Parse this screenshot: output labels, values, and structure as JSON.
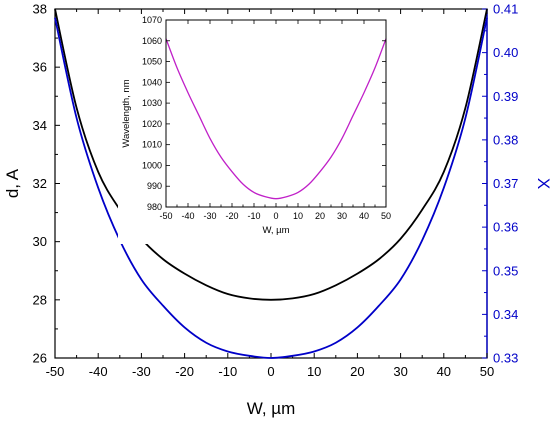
{
  "chart_data": [
    {
      "type": "line",
      "title": "",
      "xlabel": "W, µm",
      "ylabel": "d, A",
      "y2label": "X",
      "xlim": [
        -50,
        50
      ],
      "ylim": [
        26,
        38
      ],
      "y2lim": [
        0.33,
        0.41
      ],
      "x_ticks": [
        "-50",
        "-40",
        "-30",
        "-20",
        "-10",
        "0",
        "10",
        "20",
        "30",
        "40",
        "50"
      ],
      "y_ticks": [
        "26",
        "28",
        "30",
        "32",
        "34",
        "36",
        "38"
      ],
      "y2_ticks": [
        "0.33",
        "0.34",
        "0.35",
        "0.36",
        "0.37",
        "0.38",
        "0.39",
        "0.40",
        "0.41"
      ],
      "grid": false,
      "series": [
        {
          "axis": "left",
          "color": "#000000",
          "x": [
            -50,
            -45,
            -40,
            -35,
            -30,
            -25,
            -20,
            -15,
            -10,
            -5,
            0,
            5,
            10,
            15,
            20,
            25,
            30,
            35,
            40,
            45,
            50
          ],
          "y": [
            38.0,
            34.6,
            32.4,
            31.1,
            30.1,
            29.4,
            28.9,
            28.5,
            28.2,
            28.05,
            28.0,
            28.05,
            28.2,
            28.5,
            28.9,
            29.4,
            30.1,
            31.1,
            32.4,
            34.6,
            38.0
          ]
        },
        {
          "axis": "right",
          "color": "#0000c8",
          "x": [
            -50,
            -45,
            -40,
            -35,
            -30,
            -25,
            -20,
            -15,
            -10,
            -5,
            0,
            5,
            10,
            15,
            20,
            25,
            30,
            35,
            40,
            45,
            50
          ],
          "y": [
            0.408,
            0.385,
            0.369,
            0.357,
            0.348,
            0.342,
            0.337,
            0.3335,
            0.3315,
            0.3305,
            0.33,
            0.3305,
            0.3315,
            0.3335,
            0.337,
            0.342,
            0.348,
            0.357,
            0.369,
            0.385,
            0.408
          ]
        }
      ]
    },
    {
      "type": "line",
      "title": "",
      "xlabel": "W, µm",
      "ylabel": "Wavelength, nm",
      "xlim": [
        -50,
        50
      ],
      "ylim": [
        980,
        1070
      ],
      "x_ticks": [
        "-50",
        "-40",
        "-30",
        "-20",
        "-10",
        "0",
        "10",
        "20",
        "30",
        "40",
        "50"
      ],
      "y_ticks": [
        "980",
        "990",
        "1000",
        "1010",
        "1020",
        "1030",
        "1040",
        "1050",
        "1060",
        "1070"
      ],
      "grid": false,
      "series": [
        {
          "axis": "left",
          "color": "#c020c8",
          "x": [
            -50,
            -45,
            -40,
            -35,
            -30,
            -25,
            -20,
            -15,
            -10,
            -5,
            0,
            5,
            10,
            15,
            20,
            25,
            30,
            35,
            40,
            45,
            50
          ],
          "y": [
            1061,
            1047,
            1035,
            1024,
            1013,
            1004,
            997,
            991,
            987,
            985,
            984,
            985,
            987,
            991,
            997,
            1004,
            1013,
            1024,
            1035,
            1047,
            1061
          ]
        }
      ]
    }
  ]
}
